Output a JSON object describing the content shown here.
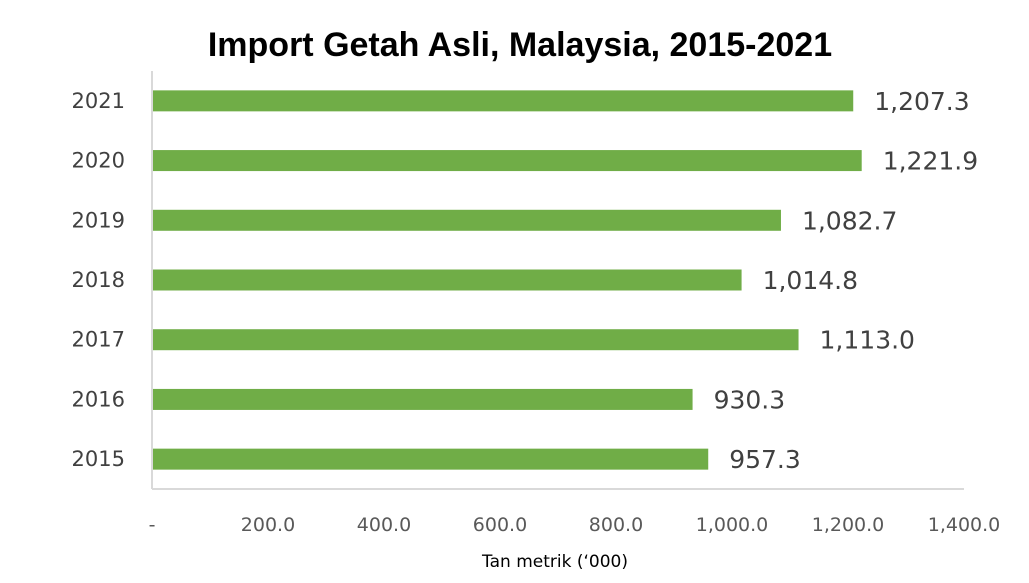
{
  "chart_data": {
    "type": "bar",
    "orientation": "horizontal",
    "title": "Import Getah Asli, Malaysia, 2015-2021",
    "xlabel": "Tan metrik (‘000)",
    "ylabel": "",
    "categories": [
      "2021",
      "2020",
      "2019",
      "2018",
      "2017",
      "2016",
      "2015"
    ],
    "values": [
      1207.3,
      1221.9,
      1082.7,
      1014.8,
      1113.0,
      930.3,
      957.3
    ],
    "data_labels": [
      "1,207.3",
      "1,221.9",
      "1,082.7",
      "1,014.8",
      "1,113.0",
      "930.3",
      "957.3"
    ],
    "xlim": [
      0,
      1400
    ],
    "x_ticks": [
      0,
      200,
      400,
      600,
      800,
      1000,
      1200,
      1400
    ],
    "x_tick_labels": [
      "-",
      "200.0",
      "400.0",
      "600.0",
      "800.0",
      "1,000.0",
      "1,200.0",
      "1,400.0"
    ],
    "grid": false,
    "legend": "none",
    "bar_color": "#70AD47",
    "axis_color": "#D9D9D9"
  }
}
